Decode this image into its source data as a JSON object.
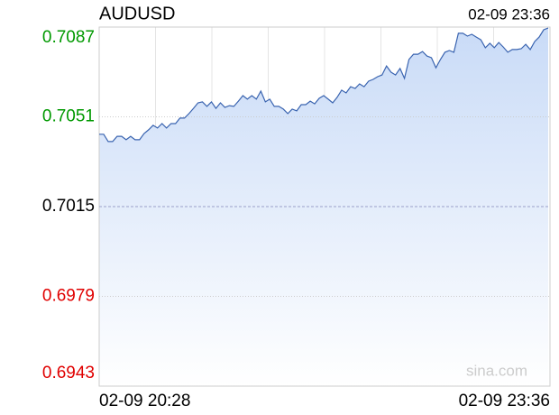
{
  "chart_data": {
    "type": "line",
    "title": "AUDUSD",
    "time": "02-09 23:36",
    "watermark": "sina.com",
    "xlabels": [
      "02-09 20:28",
      "02-09 23:36"
    ],
    "ylim": [
      0.6943,
      0.7087
    ],
    "yticks": [
      0.6943,
      0.6979,
      0.7015,
      0.7051,
      0.7087
    ],
    "color": "#3a64b0",
    "fill_color": "#c9dbf7",
    "up_color": "#009900",
    "down_color": "#e00000",
    "grid": true,
    "values": [
      0.7044,
      0.7044,
      0.70411,
      0.70411,
      0.70432,
      0.70432,
      0.70418,
      0.70432,
      0.70418,
      0.70418,
      0.70443,
      0.70458,
      0.70476,
      0.70465,
      0.70483,
      0.70465,
      0.70483,
      0.70483,
      0.70505,
      0.70505,
      0.70523,
      0.70544,
      0.70566,
      0.7057,
      0.70552,
      0.7057,
      0.70544,
      0.70566,
      0.70548,
      0.70555,
      0.70552,
      0.70573,
      0.70595,
      0.70581,
      0.70595,
      0.70581,
      0.70613,
      0.7057,
      0.70581,
      0.70552,
      0.70552,
      0.70541,
      0.70523,
      0.70541,
      0.70534,
      0.70559,
      0.70559,
      0.70573,
      0.70562,
      0.70584,
      0.70595,
      0.70581,
      0.70566,
      0.70588,
      0.70617,
      0.70606,
      0.70631,
      0.70624,
      0.70642,
      0.70631,
      0.70653,
      0.7066,
      0.70671,
      0.70678,
      0.70714,
      0.70689,
      0.70678,
      0.70704,
      0.70664,
      0.7074,
      0.70761,
      0.70761,
      0.70772,
      0.70754,
      0.70747,
      0.70707,
      0.7074,
      0.70769,
      0.70776,
      0.70769,
      0.70845,
      0.70845,
      0.70834,
      0.70841,
      0.7083,
      0.70819,
      0.70787,
      0.70805,
      0.70787,
      0.70808,
      0.7079,
      0.70769,
      0.7078,
      0.7078,
      0.70783,
      0.70801,
      0.7078,
      0.70812,
      0.7083,
      0.70859,
      0.70866
    ]
  }
}
